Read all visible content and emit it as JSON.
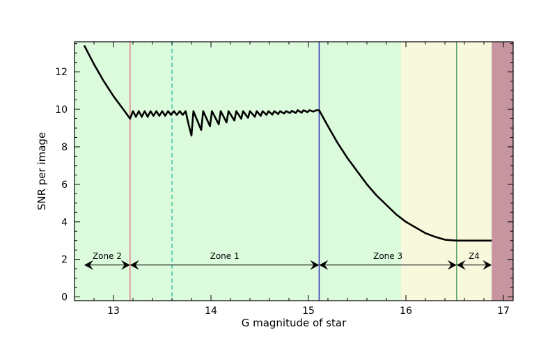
{
  "chart_data": {
    "type": "line",
    "xlabel": "G magnitude of star",
    "ylabel": "SNR per image",
    "xlim": [
      12.6,
      17.1
    ],
    "ylim": [
      -0.2,
      13.6
    ],
    "xticks": [
      13,
      14,
      15,
      16,
      17
    ],
    "yticks": [
      0,
      2,
      4,
      6,
      8,
      10,
      12
    ],
    "grid": false,
    "colors": {
      "line": "#000000",
      "band_green": "#dcfadc",
      "band_yellow": "#f8f8dc",
      "band_mauve": "#c7959f",
      "line_red": "#e08080",
      "line_teal_dashed": "#40c8a0",
      "line_blue": "#3030b0",
      "line_green": "#50a060"
    },
    "bands": [
      {
        "x0": 12.6,
        "x1": 15.95,
        "color": "#dcfadc"
      },
      {
        "x0": 15.95,
        "x1": 16.88,
        "color": "#f8f8dc"
      },
      {
        "x0": 16.88,
        "x1": 17.1,
        "color": "#c7959f"
      }
    ],
    "vlines": [
      {
        "x": 13.17,
        "color": "#e08080",
        "style": "solid"
      },
      {
        "x": 13.6,
        "color": "#40c8a0",
        "style": "dashed"
      },
      {
        "x": 15.11,
        "color": "#3030b0",
        "style": "solid"
      },
      {
        "x": 16.52,
        "color": "#50a060",
        "style": "solid"
      }
    ],
    "zones": [
      {
        "label": "Zone 2",
        "x0": 12.7,
        "x1": 13.17
      },
      {
        "label": "Zone 1",
        "x0": 13.17,
        "x1": 15.11
      },
      {
        "label": "Zone 3",
        "x0": 15.11,
        "x1": 16.52
      },
      {
        "label": "Z4",
        "x0": 16.52,
        "x1": 16.88
      }
    ],
    "zone_arrow_y": 1.7,
    "series": [
      {
        "x": [
          12.7,
          12.8,
          12.9,
          13.0,
          13.1,
          13.17,
          13.2,
          13.23,
          13.26,
          13.29,
          13.32,
          13.35,
          13.38,
          13.41,
          13.44,
          13.47,
          13.5,
          13.53,
          13.56,
          13.59,
          13.62,
          13.65,
          13.68,
          13.71,
          13.74,
          13.77,
          13.8,
          13.82,
          13.9,
          13.92,
          13.99,
          14.01,
          14.08,
          14.1,
          14.16,
          14.18,
          14.24,
          14.26,
          14.31,
          14.33,
          14.38,
          14.4,
          14.45,
          14.47,
          14.51,
          14.53,
          14.57,
          14.59,
          14.63,
          14.65,
          14.69,
          14.71,
          14.75,
          14.77,
          14.81,
          14.83,
          14.87,
          14.89,
          14.93,
          14.95,
          14.99,
          15.01,
          15.05,
          15.08,
          15.11,
          15.2,
          15.3,
          15.4,
          15.5,
          15.6,
          15.7,
          15.8,
          15.9,
          16.0,
          16.1,
          16.2,
          16.3,
          16.4,
          16.52,
          16.6,
          16.7,
          16.8,
          16.88
        ],
        "y": [
          13.4,
          12.4,
          11.5,
          10.7,
          10.0,
          9.5,
          9.9,
          9.6,
          9.9,
          9.6,
          9.9,
          9.6,
          9.9,
          9.65,
          9.9,
          9.65,
          9.9,
          9.65,
          9.9,
          9.7,
          9.9,
          9.7,
          9.9,
          9.7,
          9.9,
          9.2,
          8.6,
          9.9,
          8.9,
          9.9,
          9.1,
          9.9,
          9.2,
          9.9,
          9.3,
          9.9,
          9.4,
          9.9,
          9.5,
          9.9,
          9.55,
          9.9,
          9.6,
          9.9,
          9.65,
          9.9,
          9.7,
          9.9,
          9.72,
          9.9,
          9.75,
          9.9,
          9.77,
          9.9,
          9.8,
          9.92,
          9.8,
          9.95,
          9.82,
          9.95,
          9.85,
          9.95,
          9.88,
          9.95,
          9.95,
          9.1,
          8.2,
          7.4,
          6.7,
          6.0,
          5.4,
          4.9,
          4.4,
          4.0,
          3.7,
          3.4,
          3.2,
          3.05,
          3.0,
          3.0,
          3.0,
          3.0,
          3.0
        ]
      }
    ]
  }
}
